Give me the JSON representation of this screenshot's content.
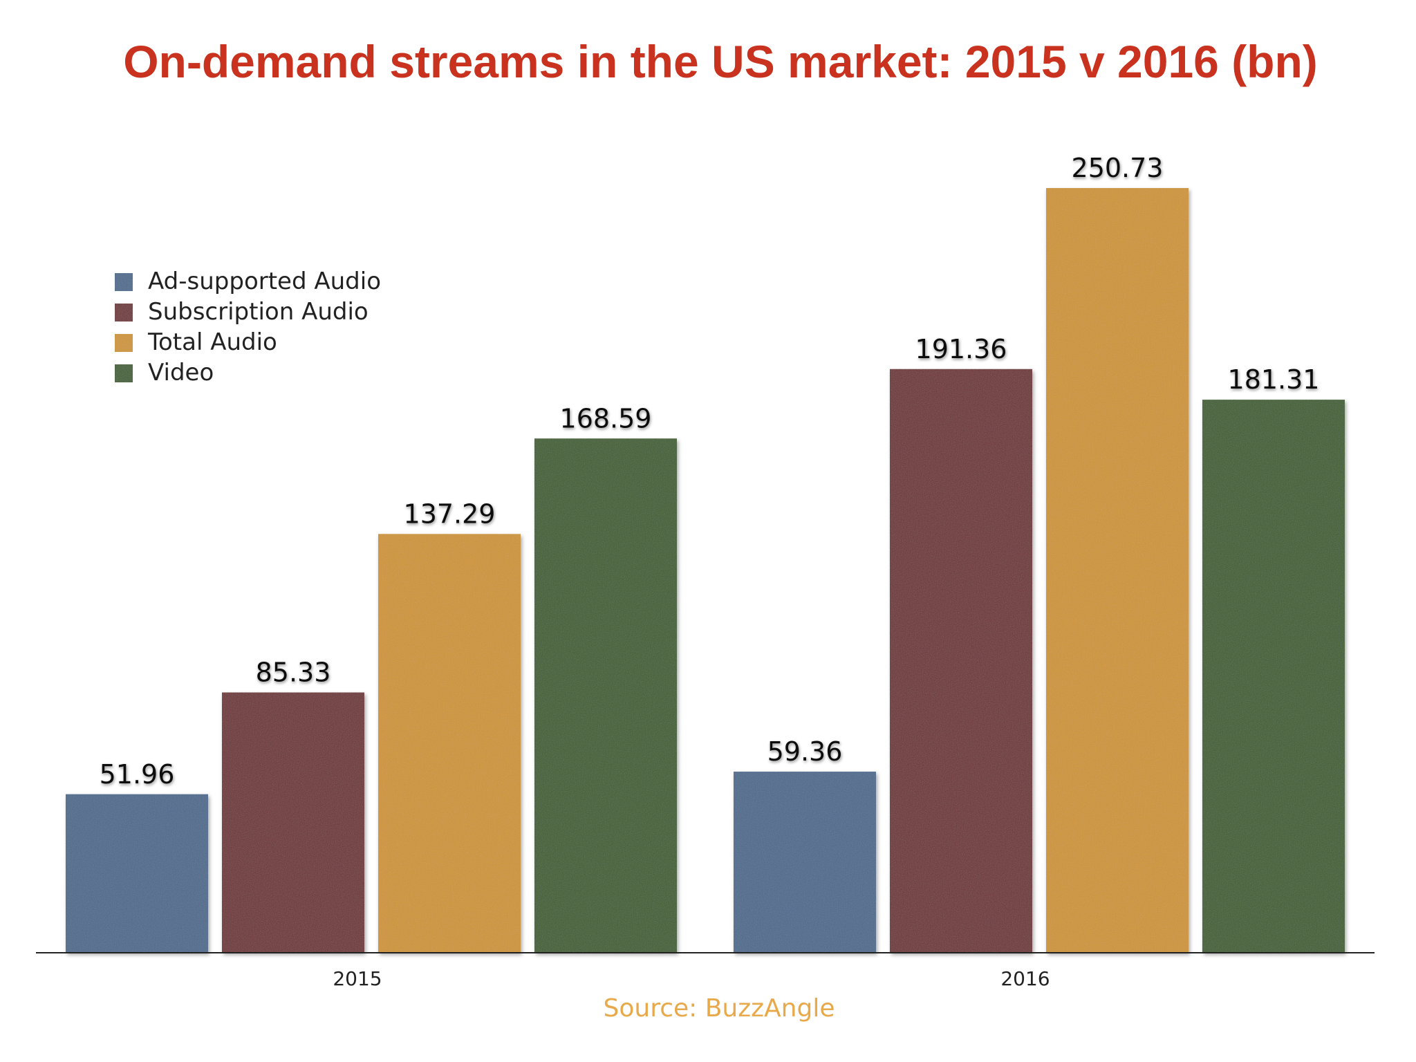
{
  "chart_data": {
    "type": "bar",
    "title": "On-demand streams in the US market: 2015 v 2016 (bn)",
    "source": "Source: BuzzAngle",
    "categories": [
      "2015",
      "2016"
    ],
    "series": [
      {
        "name": "Ad-supported Audio",
        "color": "#4e6a8e",
        "values": [
          51.96,
          59.36
        ],
        "labels": [
          "51.96",
          "59.36"
        ]
      },
      {
        "name": "Subscription Audio",
        "color": "#6e3336",
        "values": [
          85.33,
          191.36
        ],
        "labels": [
          "85.33",
          "191.36"
        ]
      },
      {
        "name": "Total Audio",
        "color": "#cf9530",
        "values": [
          137.29,
          250.73
        ],
        "labels": [
          "137.29",
          "250.73"
        ]
      },
      {
        "name": "Video",
        "color": "#3f5f2e",
        "values": [
          168.59,
          181.31
        ],
        "labels": [
          "168.59",
          "181.31"
        ]
      }
    ],
    "ylim": [
      0,
      250.73
    ],
    "grid": false,
    "legend_position": "top-left"
  }
}
